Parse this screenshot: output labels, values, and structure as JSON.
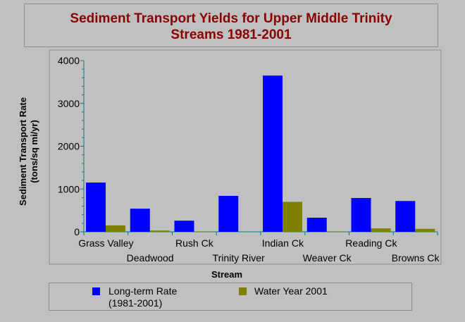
{
  "title_line1": "Sediment Transport Yields for Upper Middle Trinity",
  "title_line2": "Streams 1981-2001",
  "chart_data": {
    "type": "bar",
    "title": "Sediment Transport Yields for Upper Middle Trinity Streams 1981-2001",
    "xlabel": "Stream",
    "ylabel_line1": "Sediment Transport Rate",
    "ylabel_line2": "(tons/sq mi/yr)",
    "ylim": [
      0,
      4000
    ],
    "yticks": [
      "0",
      "1000",
      "2000",
      "3000",
      "4000"
    ],
    "categories": [
      "Grass Valley",
      "Deadwood",
      "Rush Ck",
      "Trinity River",
      "Indian Ck",
      "Weaver Ck",
      "Reading Ck",
      "Browns Ck"
    ],
    "series": [
      {
        "name": "Long-term Rate\n(1981-2001)",
        "color": "#0000ff",
        "values": [
          1150,
          540,
          260,
          840,
          3650,
          330,
          790,
          720
        ]
      },
      {
        "name": "Water Year 2001",
        "color": "#808000",
        "values": [
          150,
          30,
          10,
          0,
          700,
          10,
          80,
          70
        ]
      }
    ],
    "legend": "bottom"
  }
}
